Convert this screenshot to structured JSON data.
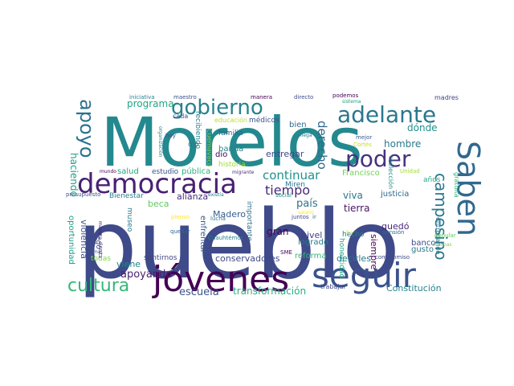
{
  "words": [
    {
      "text": "pueblo",
      "color": "#3e4a89"
    },
    {
      "text": "Morelos",
      "color": "#23898e"
    },
    {
      "text": "jóvenes",
      "color": "#440154"
    },
    {
      "text": "seguir",
      "color": "#3b528b"
    },
    {
      "text": "democracia",
      "color": "#482173"
    },
    {
      "text": "Saben",
      "color": "#31688e"
    },
    {
      "text": "adelante",
      "color": "#2a788e"
    },
    {
      "text": "gobierno",
      "color": "#26828e"
    },
    {
      "text": "poder",
      "color": "#46327e"
    },
    {
      "text": "cultura",
      "color": "#35b779"
    },
    {
      "text": "apoyo",
      "color": "#2c728e"
    },
    {
      "text": "campesino",
      "color": "#2a788e"
    },
    {
      "text": "continuar",
      "color": "#21918c"
    },
    {
      "text": "tiempo",
      "color": "#482878"
    },
    {
      "text": "derecho",
      "color": "#31688e"
    },
    {
      "text": "apoyando",
      "color": "#481f70"
    },
    {
      "text": "escuela",
      "color": "#3b528b"
    },
    {
      "text": "transformación",
      "color": "#29af7f"
    },
    {
      "text": "programa",
      "color": "#21a685"
    },
    {
      "text": "dónde",
      "color": "#21918c"
    },
    {
      "text": "hombre",
      "color": "#2a788e"
    },
    {
      "text": "Constitución",
      "color": "#26828e"
    },
    {
      "text": "haciendo",
      "color": "#1f9e89"
    },
    {
      "text": "entregar",
      "color": "#3e4989"
    },
    {
      "text": "Francisco",
      "color": "#73d055"
    },
    {
      "text": "gran",
      "color": "#440154"
    },
    {
      "text": "país",
      "color": "#2c728e"
    },
    {
      "text": "viva",
      "color": "#2a788e"
    },
    {
      "text": "justicia",
      "color": "#31688e"
    },
    {
      "text": "tierra",
      "color": "#471365"
    },
    {
      "text": "quedó",
      "color": "#482878"
    },
    {
      "text": "banco",
      "color": "#3e4989"
    },
    {
      "text": "salud",
      "color": "#22a884"
    },
    {
      "text": "estudio",
      "color": "#3b528b"
    },
    {
      "text": "pública",
      "color": "#2db27d"
    },
    {
      "text": "beca",
      "color": "#5ec962"
    },
    {
      "text": "alianza",
      "color": "#472c7a"
    },
    {
      "text": "Madero",
      "color": "#355f8d"
    },
    {
      "text": "enfrentar",
      "color": "#38598c"
    },
    {
      "text": "importante",
      "color": "#2d708e"
    },
    {
      "text": "nivel",
      "color": "#433e85"
    },
    {
      "text": "logrado",
      "color": "#2a788e"
    },
    {
      "text": "siempre",
      "color": "#440154"
    },
    {
      "text": "gusto",
      "color": "#2a788e"
    },
    {
      "text": "reforma",
      "color": "#35b779"
    },
    {
      "text": "decirles",
      "color": "#2a788e"
    },
    {
      "text": "conservadores",
      "color": "#3e4989"
    },
    {
      "text": "sentirnos",
      "color": "#414487"
    },
    {
      "text": "viene",
      "color": "#26828e"
    },
    {
      "text": "todas",
      "color": "#84d44b"
    },
    {
      "text": "oportunidad",
      "color": "#1fa088"
    },
    {
      "text": "violencia",
      "color": "#3b528b"
    },
    {
      "text": "hecho",
      "color": "#2a788e"
    },
    {
      "text": "honestidad",
      "color": "#22a884"
    },
    {
      "text": "bien",
      "color": "#31688e"
    },
    {
      "text": "médicos",
      "color": "#3b528b"
    },
    {
      "text": "familia",
      "color": "#355f8d"
    },
    {
      "text": "ojo",
      "color": "#2a788e"
    },
    {
      "text": "dio",
      "color": "#440154"
    },
    {
      "text": "banda",
      "color": "#24878e"
    },
    {
      "text": "historia",
      "color": "#a0da39"
    },
    {
      "text": "recibiendo",
      "color": "#277f8e"
    },
    {
      "text": "Cuernavaca",
      "color": "#7ad151"
    },
    {
      "text": "educación",
      "color": "#bddf26"
    },
    {
      "text": "cada",
      "color": "#3b528b"
    },
    {
      "text": "Miren",
      "color": "#2a788e"
    },
    {
      "text": "Bienestar",
      "color": "#26828e"
    },
    {
      "text": "museo",
      "color": "#2a788e"
    },
    {
      "text": "llegó",
      "color": "#3e4989"
    },
    {
      "text": "años",
      "color": "#22a884"
    },
    {
      "text": "gratuita",
      "color": "#2db27d"
    },
    {
      "text": "madres",
      "color": "#414487"
    },
    {
      "text": "reelección",
      "color": "#21918c"
    },
    {
      "text": "mejor",
      "color": "#38598c"
    },
    {
      "text": "Cortés",
      "color": "#c8e020"
    },
    {
      "text": "Unidad",
      "color": "#a5db36"
    },
    {
      "text": "hoy",
      "color": "#3b528b"
    },
    {
      "text": "organización",
      "color": "#2a788e"
    },
    {
      "text": "mundo",
      "color": "#440154"
    },
    {
      "text": "presupuesto",
      "color": "#3b528b"
    },
    {
      "text": "existía",
      "color": "#2a788e"
    },
    {
      "text": "migrante",
      "color": "#472c7a"
    },
    {
      "text": "social",
      "color": "#21918c"
    },
    {
      "text": "salario",
      "color": "#fde725"
    },
    {
      "text": "iba",
      "color": "#dde318"
    },
    {
      "text": "juntos",
      "color": "#3e4989"
    },
    {
      "text": "ir",
      "color": "#2a788e"
    },
    {
      "text": "lucha",
      "color": "#2a788e"
    },
    {
      "text": "pienso",
      "color": "#fde725"
    },
    {
      "text": "quedar",
      "color": "#31688e"
    },
    {
      "text": "Cuauhtémoc",
      "color": "#26828e"
    },
    {
      "text": "manera directa",
      "color": "#481f70"
    },
    {
      "text": "mal",
      "color": "#3b528b"
    },
    {
      "text": "SME",
      "color": "#440154"
    },
    {
      "text": "trabajar",
      "color": "#3e4989"
    },
    {
      "text": "entregando",
      "color": "#2a788e"
    },
    {
      "text": "pensión",
      "color": "#31688e"
    },
    {
      "text": "popular",
      "color": "#5ec962"
    },
    {
      "text": "muchas",
      "color": "#7ad151"
    },
    {
      "text": "compromiso",
      "color": "#3e4989"
    },
    {
      "text": "llega",
      "color": "#2a788e"
    },
    {
      "text": "iniciativa",
      "color": "#26828e"
    },
    {
      "text": "maestro",
      "color": "#3b528b"
    },
    {
      "text": "manera",
      "color": "#440154"
    },
    {
      "text": "directo",
      "color": "#3e4989"
    },
    {
      "text": "podemos",
      "color": "#440154"
    },
    {
      "text": "sistema",
      "color": "#1fa088"
    }
  ]
}
